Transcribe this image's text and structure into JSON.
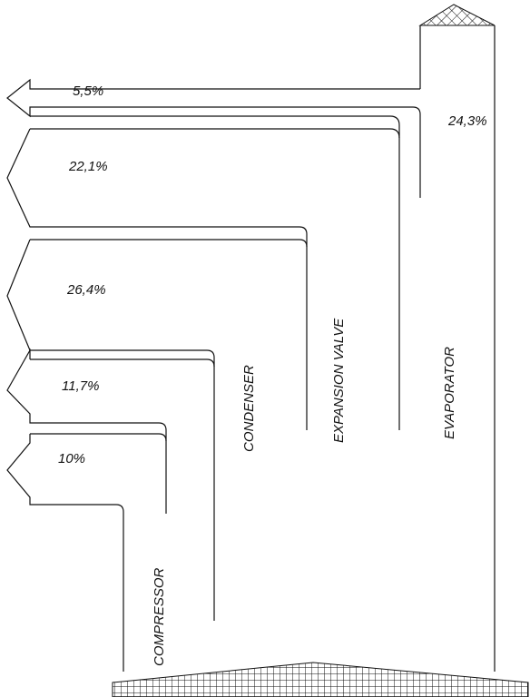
{
  "diagram": {
    "stages": [
      {
        "id": "compressor",
        "label": "COMPRESSOR"
      },
      {
        "id": "condenser",
        "label": "CONDENSER"
      },
      {
        "id": "expansion_valve",
        "label": "EXPANSION VALVE"
      },
      {
        "id": "evaporator",
        "label": "EVAPORATOR"
      }
    ],
    "flows": [
      {
        "id": "flow_1",
        "label": "5,5%"
      },
      {
        "id": "flow_2",
        "label": "24,3%"
      },
      {
        "id": "flow_3",
        "label": "22,1%"
      },
      {
        "id": "flow_4",
        "label": "26,4%"
      },
      {
        "id": "flow_5",
        "label": "11,7%"
      },
      {
        "id": "flow_6",
        "label": "10%"
      }
    ]
  }
}
